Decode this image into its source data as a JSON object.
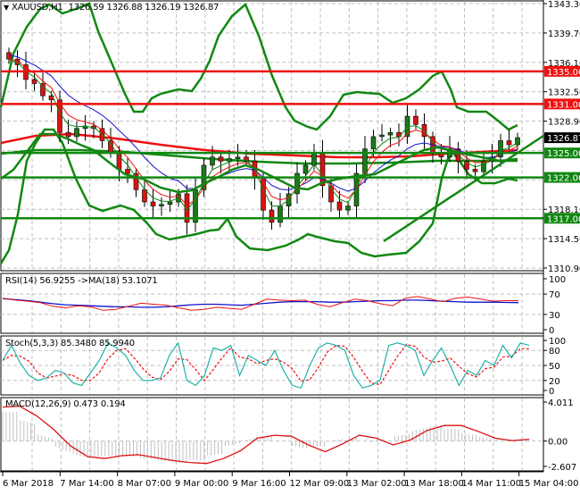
{
  "window": {
    "symbol_header": "XAUUSD,H1",
    "ohlc": "1326.59 1326.88 1326.19 1326.87",
    "dropdown_icon": "triangle-down-icon"
  },
  "colors": {
    "bull_candle": "#1a7a1a",
    "bear_candle": "#dd1111",
    "bollinger": "#118811",
    "ma200": "#ee1111",
    "ma_green": "#118811",
    "support_line": "#118811",
    "resistance_line": "#ee1111",
    "rsi": "#ee1111",
    "rsi_ma": "#1111cc",
    "stoch_main": "#20b2aa",
    "stoch_signal": "#ee1111",
    "macd_hist": "#c0c0c0",
    "macd_signal": "#dd1111",
    "current_price_bg": "#000000",
    "grid": "#c0c0c0"
  },
  "price_axis": {
    "ticks": [
      "1343.30",
      "1339.70",
      "1336.10",
      "1332.50",
      "1328.90",
      "1318.10",
      "1314.50",
      "1310.90"
    ],
    "levels": [
      {
        "label": "1335.00",
        "type": "resistance"
      },
      {
        "label": "1331.00",
        "type": "resistance"
      },
      {
        "label": "1326.87",
        "type": "current"
      },
      {
        "label": "1325.00",
        "type": "support"
      },
      {
        "label": "1322.00",
        "type": "support"
      },
      {
        "label": "1317.00",
        "type": "support"
      }
    ]
  },
  "rsi_panel": {
    "label": "RSI(14) 56.9255  ->MA(18) 53.1071",
    "ticks": [
      "100",
      "70",
      "30",
      "0"
    ]
  },
  "stoch_panel": {
    "label": "Stoch(5,3,3) 85.3480 85.9940",
    "ticks": [
      "100",
      "80",
      "50",
      "20",
      "0"
    ]
  },
  "macd_panel": {
    "label": "MACD(12,26,9) 0.473 0.194",
    "ticks": [
      "4.011",
      "0.00",
      "-2.607"
    ]
  },
  "time_axis": {
    "labels": [
      "6 Mar 2018",
      "7 Mar 14:00",
      "8 Mar 07:00",
      "9 Mar 00:00",
      "9 Mar 16:00",
      "12 Mar 09:00",
      "13 Mar 02:00",
      "13 Mar 18:00",
      "14 Mar 11:00",
      "15 Mar 04:00"
    ]
  },
  "chart_data": [
    {
      "type": "candlestick",
      "title": "XAUUSD,H1",
      "subtitle": "1326.59 1326.88 1326.19 1326.87",
      "ylim": [
        1310.9,
        1343.3
      ],
      "y_ticks": [
        1343.3,
        1339.7,
        1336.1,
        1332.5,
        1328.9,
        1318.1,
        1314.5,
        1310.9
      ],
      "x_tick_labels": [
        "6 Mar 2018",
        "7 Mar 14:00",
        "8 Mar 07:00",
        "9 Mar 00:00",
        "9 Mar 16:00",
        "12 Mar 09:00",
        "13 Mar 02:00",
        "13 Mar 18:00",
        "14 Mar 11:00",
        "15 Mar 04:00"
      ],
      "close_approx": [
        1336.5,
        1335.8,
        1334.0,
        1333.5,
        1332.0,
        1331.5,
        1327.5,
        1327.0,
        1328.0,
        1328.3,
        1328.0,
        1326.5,
        1325.0,
        1323.0,
        1322.5,
        1320.5,
        1319.0,
        1318.5,
        1318.7,
        1319.0,
        1320.0,
        1316.5,
        1320.5,
        1323.5,
        1324.5,
        1324.0,
        1324.3,
        1324.5,
        1324.0,
        1322.0,
        1318.0,
        1316.5,
        1318.5,
        1320.0,
        1322.5,
        1323.5,
        1325.0,
        1321.0,
        1319.0,
        1318.0,
        1318.5,
        1322.5,
        1325.5,
        1327.0,
        1327.2,
        1327.5,
        1327.0,
        1329.5,
        1328.5,
        1327.0,
        1325.0,
        1324.5,
        1325.5,
        1324.0,
        1323.0,
        1322.7,
        1324.0,
        1324.5,
        1326.5,
        1326.0,
        1326.87
      ],
      "current_price": 1326.87,
      "horizontal_levels": [
        {
          "price": 1335.0,
          "color": "red",
          "role": "resistance"
        },
        {
          "price": 1331.0,
          "color": "red",
          "role": "resistance"
        },
        {
          "price": 1325.0,
          "color": "green",
          "role": "support"
        },
        {
          "price": 1322.0,
          "color": "green",
          "role": "support"
        },
        {
          "price": 1317.0,
          "color": "green",
          "role": "support"
        }
      ],
      "overlays": [
        "Bollinger Bands (upper/middle/lower, green)",
        "Moving average 200 (red)",
        "Moving average (green)",
        "Fast MAs (red, blue, green)",
        "Uptrend line (green)"
      ]
    },
    {
      "type": "line",
      "title": "RSI(14) 56.9255 ->MA(18) 53.1071",
      "ylim": [
        0,
        100
      ],
      "y_ticks": [
        100,
        70,
        30,
        0
      ],
      "series": [
        {
          "name": "RSI(14)",
          "last": 56.9255,
          "values": [
            62,
            58,
            56,
            53,
            46,
            43,
            47,
            45,
            38,
            40,
            46,
            52,
            50,
            48,
            43,
            38,
            40,
            44,
            42,
            40,
            50,
            60,
            58,
            57,
            58,
            50,
            45,
            53,
            60,
            57,
            51,
            47,
            62,
            65,
            60,
            55,
            62,
            64,
            60,
            56,
            57,
            56.93
          ]
        },
        {
          "name": "MA(18)",
          "last": 53.1071,
          "values": [
            61,
            59,
            57,
            54,
            51,
            49,
            48,
            47,
            46,
            45,
            45,
            44,
            44,
            45,
            47,
            49,
            50,
            50,
            49,
            48,
            50,
            52,
            54,
            55,
            55,
            55,
            54,
            54,
            55,
            56,
            57,
            57,
            58,
            58,
            57,
            56,
            55,
            54,
            54,
            54,
            53.5,
            53.11
          ]
        }
      ]
    },
    {
      "type": "line",
      "title": "Stoch(5,3,3) 85.3480 85.9940",
      "ylim": [
        0,
        100
      ],
      "y_ticks": [
        100,
        80,
        50,
        20,
        0
      ],
      "series": [
        {
          "name": "%K",
          "last": 85.348
        },
        {
          "name": "%D",
          "last": 85.994
        }
      ]
    },
    {
      "type": "bar",
      "title": "MACD(12,26,9) 0.473 0.194",
      "ylim": [
        -2.607,
        4.011
      ],
      "y_ticks": [
        4.011,
        0.0,
        -2.607
      ],
      "series": [
        {
          "name": "MACD histogram",
          "last": 0.473
        },
        {
          "name": "Signal",
          "last": 0.194,
          "values": [
            3.5,
            3.6,
            2.6,
            1.2,
            -0.5,
            -1.6,
            -1.8,
            -1.5,
            -1.4,
            -1.7,
            -2.0,
            -2.2,
            -2.3,
            -1.8,
            -1.0,
            0.3,
            0.6,
            0.5,
            -0.4,
            -1.1,
            -0.3,
            0.6,
            0.3,
            -0.4,
            0.1,
            1.1,
            1.6,
            1.6,
            1.0,
            0.3,
            0.05,
            0.19
          ]
        }
      ]
    }
  ]
}
